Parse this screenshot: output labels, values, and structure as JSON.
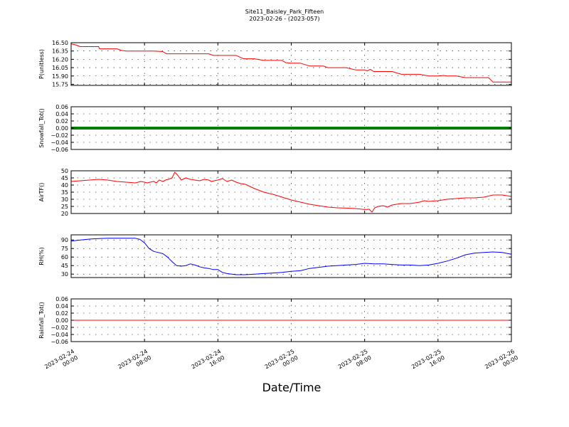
{
  "title": "Site11_Baisley_Park_Fifteen",
  "subtitle": "2023-02-26 - (2023-057)",
  "chart_data": {
    "type": "line",
    "xlabel": "Date/Time",
    "x_ticks": [
      "2023-02-24\n00:00",
      "2023-02-24\n08:00",
      "2023-02-24\n16:00",
      "2023-02-25\n00:00",
      "2023-02-25\n08:00",
      "2023-02-25\n16:00",
      "2023-02-26\n00:00"
    ],
    "xlim": [
      "2023-02-24 00:00",
      "2023-02-26 00:00"
    ],
    "panels": [
      {
        "ylabel": "P(unitless)",
        "ylim": [
          15.73,
          16.5
        ],
        "yticks": [
          15.75,
          15.9,
          16.05,
          16.2,
          16.35,
          16.5
        ],
        "yticklabels": [
          "15.75",
          "15.90",
          "16.05",
          "16.20",
          "16.35",
          "16.50"
        ],
        "grid": true,
        "color": "#ff0000",
        "style": "line",
        "x": [
          0,
          0.5,
          1,
          2,
          3,
          3.1,
          4,
          5,
          5.5,
          6,
          7,
          8,
          9,
          10,
          10.4,
          11,
          12,
          13,
          14,
          15,
          15.5,
          16,
          17,
          18,
          18.8,
          19,
          20,
          21,
          22,
          23,
          23.4,
          24,
          25,
          26,
          27,
          27.5,
          28,
          29,
          30,
          31,
          32,
          32.3,
          32.6,
          33,
          34,
          35,
          36,
          36.5,
          37,
          38,
          39,
          40,
          40.6,
          41,
          42,
          43,
          44,
          45,
          45.5,
          46,
          47,
          48
        ],
        "y": [
          16.48,
          16.46,
          16.43,
          16.43,
          16.43,
          16.39,
          16.39,
          16.39,
          16.36,
          16.35,
          16.35,
          16.35,
          16.35,
          16.34,
          16.3,
          16.3,
          16.3,
          16.3,
          16.3,
          16.3,
          16.27,
          16.27,
          16.27,
          16.27,
          16.21,
          16.21,
          16.21,
          16.18,
          16.18,
          16.18,
          16.14,
          16.13,
          16.13,
          16.08,
          16.08,
          16.08,
          16.05,
          16.05,
          16.05,
          16.01,
          16.01,
          15.99,
          16.02,
          15.98,
          15.98,
          15.98,
          15.93,
          15.93,
          15.93,
          15.93,
          15.9,
          15.9,
          15.91,
          15.9,
          15.9,
          15.87,
          15.87,
          15.87,
          15.87,
          15.79,
          15.79,
          15.79
        ]
      },
      {
        "ylabel": "Snowfall_Tot()",
        "ylim": [
          -0.06,
          0.06
        ],
        "yticks": [
          -0.06,
          -0.04,
          -0.02,
          0.0,
          0.02,
          0.04,
          0.06
        ],
        "yticklabels": [
          "−0.06",
          "−0.04",
          "−0.02",
          "0.00",
          "0.02",
          "0.04",
          "0.06"
        ],
        "grid": true,
        "color": "#008000",
        "style": "thick-markers",
        "x": [
          0,
          48
        ],
        "y": [
          0,
          0
        ]
      },
      {
        "ylabel": "AirTF()",
        "ylim": [
          20,
          50
        ],
        "yticks": [
          20,
          25,
          30,
          35,
          40,
          45,
          50
        ],
        "yticklabels": [
          "20",
          "25",
          "30",
          "35",
          "40",
          "45",
          "50"
        ],
        "grid": true,
        "color": "#ff0000",
        "style": "line",
        "x": [
          0,
          1,
          2,
          3,
          4,
          5,
          6,
          7,
          7.3,
          7.6,
          8,
          8.3,
          8.6,
          9,
          9.3,
          9.6,
          10,
          10.3,
          10.6,
          11,
          11.3,
          11.6,
          12,
          12.5,
          13,
          13.5,
          14,
          14.5,
          15,
          15.3,
          15.6,
          16,
          16.5,
          17,
          17.5,
          18,
          18.5,
          19,
          20,
          21,
          22,
          23,
          24,
          25,
          26,
          27,
          28,
          29,
          30,
          31,
          32,
          32.5,
          32.8,
          33.1,
          33.5,
          34,
          34.5,
          35,
          35.5,
          36,
          37,
          38,
          38.5,
          39,
          40,
          41,
          42,
          43,
          44,
          45,
          46,
          47,
          48
        ],
        "y": [
          42.5,
          43,
          43.5,
          44,
          43.5,
          42.5,
          42,
          41.5,
          42,
          42.5,
          42,
          41.5,
          42,
          42.5,
          41.5,
          43.5,
          42.5,
          43.5,
          44,
          45,
          49,
          47,
          43.5,
          45,
          44,
          43.5,
          43,
          44,
          43.5,
          42.5,
          43,
          43.5,
          44.5,
          42.5,
          43.5,
          42,
          41,
          40.5,
          37.5,
          35,
          33.5,
          31.5,
          29.5,
          28,
          26.5,
          25.5,
          24.5,
          24,
          23.8,
          23.5,
          22.8,
          23,
          21,
          24,
          25,
          25.5,
          24.5,
          26,
          26.5,
          27,
          27,
          28,
          29,
          28.5,
          29,
          30,
          30.5,
          31,
          31,
          31.5,
          33,
          33,
          32
        ]
      },
      {
        "ylabel": "RH(%)",
        "ylim": [
          24,
          99
        ],
        "yticks": [
          30,
          45,
          60,
          75,
          90
        ],
        "yticklabels": [
          "30",
          "45",
          "60",
          "75",
          "90"
        ],
        "grid": true,
        "color": "#0000ff",
        "style": "line",
        "x": [
          0,
          1,
          2,
          3,
          4,
          5,
          6,
          7,
          7.5,
          8,
          8.5,
          9,
          9.5,
          10,
          10.5,
          11,
          11.5,
          12,
          12.5,
          13,
          13.5,
          14,
          14.5,
          15,
          15.5,
          16,
          16.5,
          17,
          18,
          19,
          20,
          21,
          22,
          23,
          24,
          25,
          26,
          27,
          28,
          29,
          30,
          31,
          32,
          33,
          34,
          35,
          36,
          37,
          38,
          39,
          40,
          41,
          42,
          43,
          44,
          45,
          46,
          47,
          48
        ],
        "y": [
          88,
          90,
          91.5,
          92.5,
          93,
          93,
          93,
          93,
          91,
          85,
          75,
          70,
          68,
          66,
          60,
          52,
          45,
          44,
          45,
          48,
          46,
          43,
          41,
          40,
          38,
          38,
          33,
          31,
          29,
          29,
          30,
          31,
          32,
          33,
          35,
          36,
          40,
          42,
          44,
          45,
          46,
          47,
          49,
          48,
          48,
          47,
          46,
          46,
          45,
          46,
          49,
          53,
          58,
          64,
          67,
          68,
          69,
          68,
          65
        ]
      },
      {
        "ylabel": "Rainfall_Tot()",
        "ylim": [
          -0.06,
          0.06
        ],
        "yticks": [
          -0.06,
          -0.04,
          -0.02,
          0.0,
          0.02,
          0.04,
          0.06
        ],
        "yticklabels": [
          "−0.06",
          "−0.04",
          "−0.02",
          "0.00",
          "0.02",
          "0.04",
          "0.06"
        ],
        "grid": true,
        "color": "#ff0000",
        "style": "line",
        "x": [
          0,
          48
        ],
        "y": [
          0,
          0
        ]
      }
    ]
  }
}
